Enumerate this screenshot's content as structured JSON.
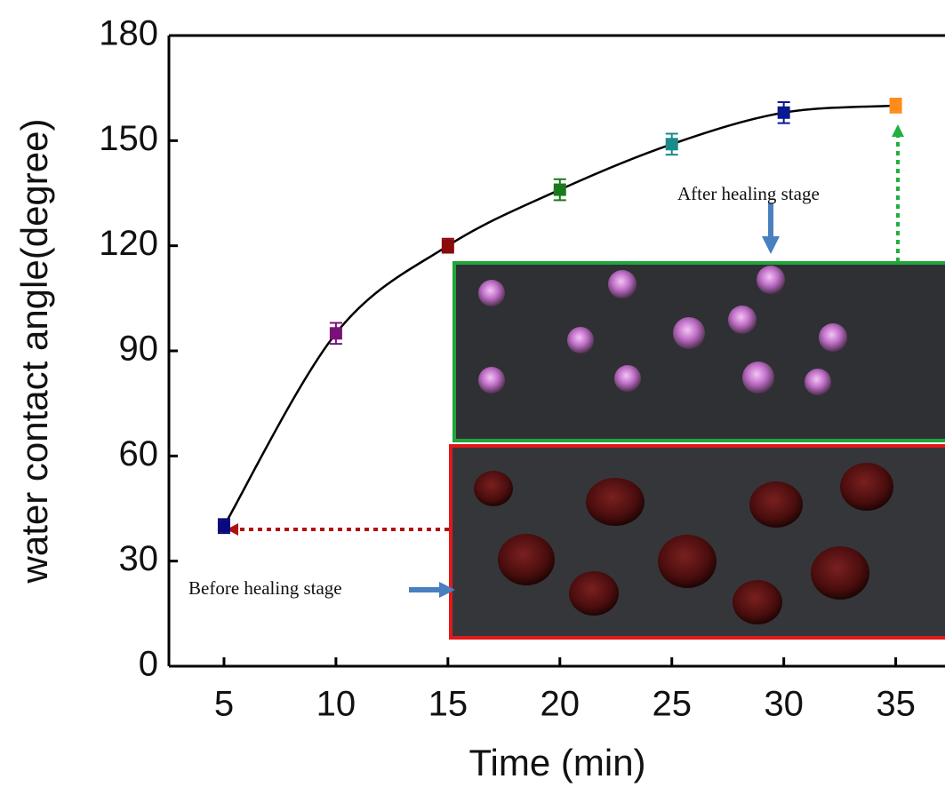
{
  "chart_data": {
    "type": "line",
    "x_label": "Time (min)",
    "y_label": "water contact angle(degree)",
    "x": [
      5,
      10,
      15,
      20,
      25,
      30,
      35
    ],
    "series": [
      {
        "color": "#000000",
        "values": [
          40,
          95,
          120,
          136,
          149,
          158,
          160
        ],
        "errors": [
          2,
          3,
          2,
          3,
          3,
          3,
          2
        ],
        "point_colors": [
          "#0a0a80",
          "#7a117a",
          "#8b0a0a",
          "#1a7a1a",
          "#1a8a8a",
          "#0a1a90",
          "#ff8c1a"
        ]
      }
    ],
    "xlim": [
      2.54,
      37.2
    ],
    "ylim": [
      0,
      180
    ],
    "xticks": [
      5,
      10,
      15,
      20,
      25,
      30,
      35
    ],
    "yticks": [
      0,
      30,
      60,
      90,
      120,
      150,
      180
    ],
    "annotations": [
      "After healing stage",
      "Before healing stage"
    ]
  }
}
